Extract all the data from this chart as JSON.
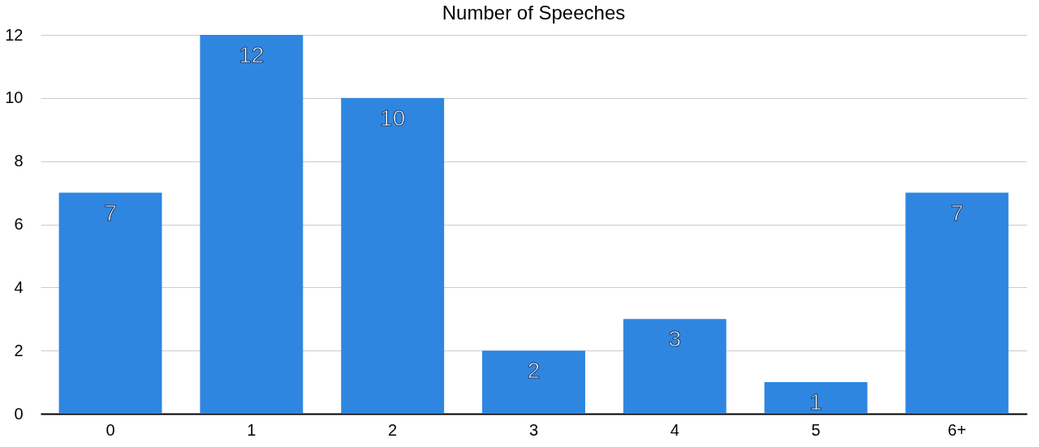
{
  "chart_data": {
    "type": "bar",
    "title": "Number of Speeches",
    "categories": [
      "0",
      "1",
      "2",
      "3",
      "4",
      "5",
      "6+"
    ],
    "values": [
      7,
      12,
      10,
      2,
      3,
      1,
      7
    ],
    "color": "#2f86e0",
    "ylim": [
      0,
      12
    ],
    "yticks": [
      0,
      2,
      4,
      6,
      8,
      10,
      12
    ],
    "grid": "y",
    "data_labels": true
  }
}
